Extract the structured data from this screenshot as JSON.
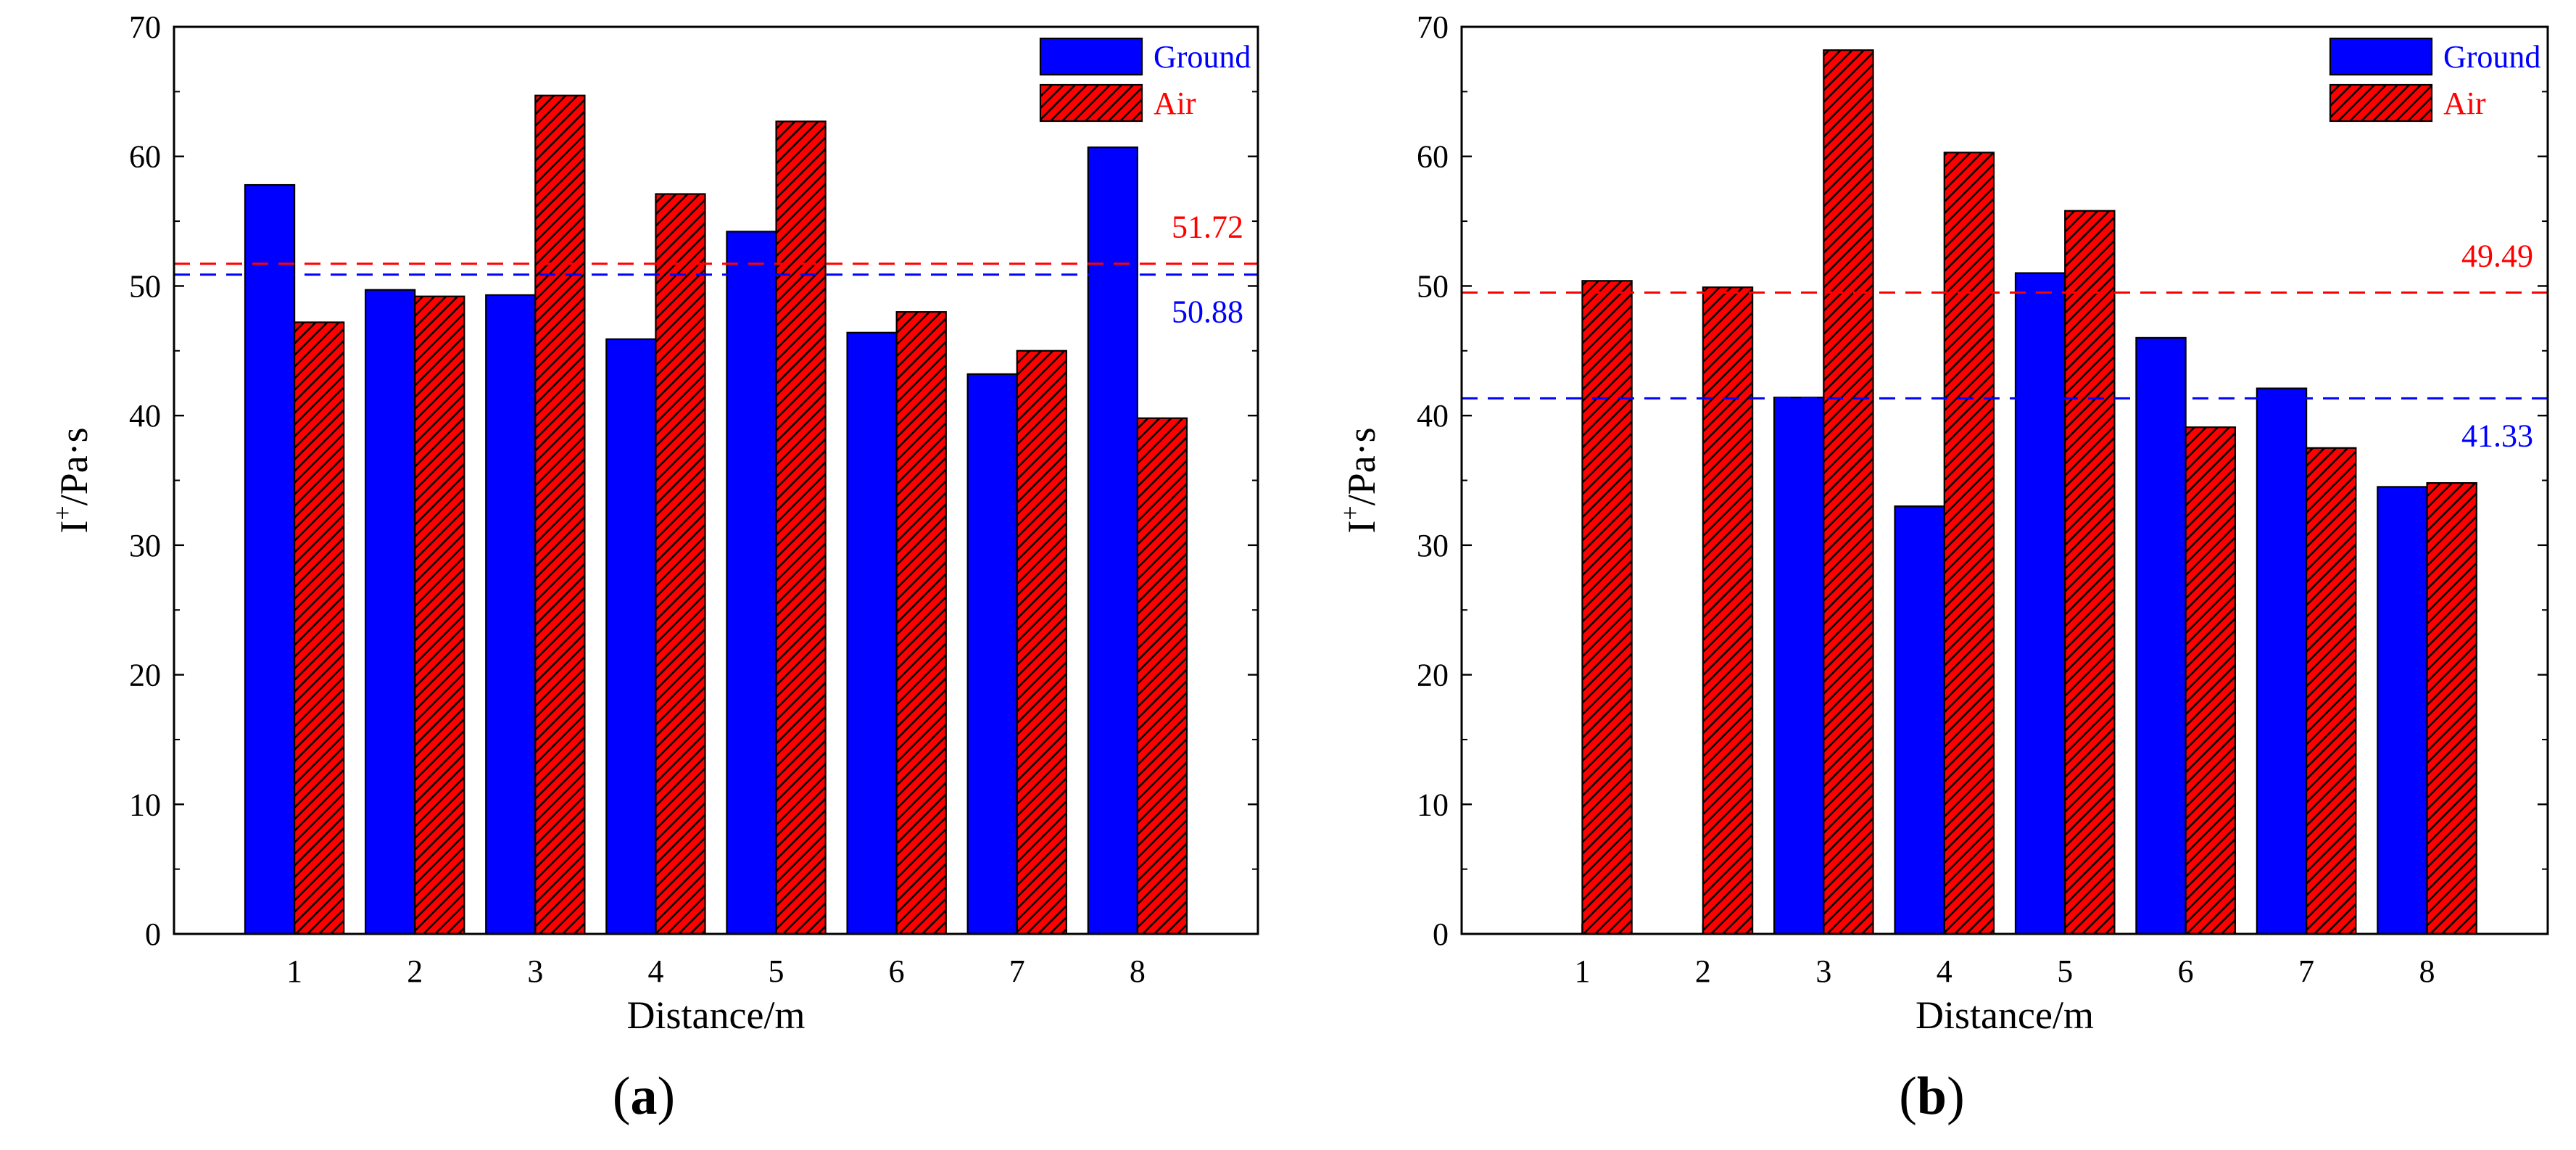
{
  "figure": {
    "panels": [
      {
        "label_open": "(",
        "label_letter": "a",
        "label_close": ")"
      },
      {
        "label_open": "(",
        "label_letter": "b",
        "label_close": ")"
      }
    ]
  },
  "colors": {
    "ground": "#0000ff",
    "air": "#ff0000",
    "air_hatch": "#000000"
  },
  "chart_data": [
    {
      "type": "bar",
      "xlabel": "Distance/m",
      "ylabel": "I+/Pa·s",
      "ylabel_main": "I",
      "ylabel_sup": "+",
      "ylabel_rest": "/Pa·s",
      "ylim": [
        0,
        70
      ],
      "yticks": [
        0,
        10,
        20,
        30,
        40,
        50,
        60,
        70
      ],
      "categories": [
        "1",
        "2",
        "3",
        "4",
        "5",
        "6",
        "7",
        "8"
      ],
      "legend_position": "top-right",
      "series": [
        {
          "name": "Ground",
          "values": [
            57.8,
            49.7,
            49.3,
            45.9,
            54.2,
            46.4,
            43.2,
            60.7
          ]
        },
        {
          "name": "Air",
          "values": [
            47.2,
            49.2,
            64.7,
            57.1,
            62.7,
            48.0,
            45.0,
            39.8
          ]
        }
      ],
      "reference_lines": [
        {
          "series": "Air",
          "value": 51.72,
          "label": "51.72"
        },
        {
          "series": "Ground",
          "value": 50.88,
          "label": "50.88"
        }
      ]
    },
    {
      "type": "bar",
      "xlabel": "Distance/m",
      "ylabel": "I+/Pa·s",
      "ylabel_main": "I",
      "ylabel_sup": "+",
      "ylabel_rest": "/Pa·s",
      "ylim": [
        0,
        70
      ],
      "yticks": [
        0,
        10,
        20,
        30,
        40,
        50,
        60,
        70
      ],
      "categories": [
        "1",
        "2",
        "3",
        "4",
        "5",
        "6",
        "7",
        "8"
      ],
      "legend_position": "top-right",
      "series": [
        {
          "name": "Ground",
          "values": [
            0,
            0,
            41.4,
            33.0,
            51.0,
            46.0,
            42.1,
            34.5
          ]
        },
        {
          "name": "Air",
          "values": [
            50.4,
            49.9,
            68.2,
            60.3,
            55.8,
            39.1,
            37.5,
            34.8
          ]
        }
      ],
      "reference_lines": [
        {
          "series": "Air",
          "value": 49.49,
          "label": "49.49"
        },
        {
          "series": "Ground",
          "value": 41.33,
          "label": "41.33"
        }
      ]
    }
  ]
}
